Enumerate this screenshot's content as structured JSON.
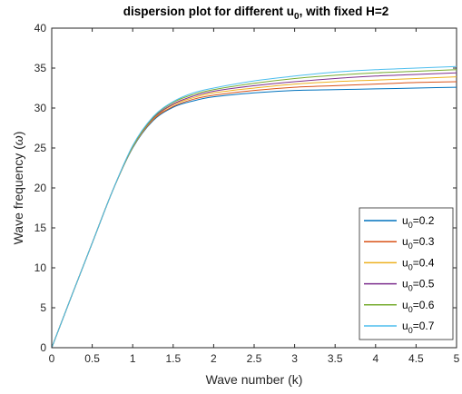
{
  "chart_data": {
    "type": "line",
    "title_main": "dispersion plot for different u",
    "title_sub": "0",
    "title_tail": ", with fixed H=2",
    "xlabel": "Wave number (k)",
    "ylabel_main": "Wave frequency (",
    "ylabel_symbol": "ω",
    "ylabel_tail": ")",
    "xlim": [
      0,
      5
    ],
    "ylim": [
      0,
      40
    ],
    "x_ticks": [
      "0",
      "0.5",
      "1",
      "1.5",
      "2",
      "2.5",
      "3",
      "3.5",
      "4",
      "4.5",
      "5"
    ],
    "y_ticks": [
      "0",
      "5",
      "10",
      "15",
      "20",
      "25",
      "30",
      "35",
      "40"
    ],
    "grid": false,
    "legend_position": "bottom-right",
    "x": [
      0,
      0.25,
      0.5,
      0.75,
      1,
      1.25,
      1.5,
      1.75,
      2,
      2.5,
      3,
      3.5,
      4,
      4.5,
      5
    ],
    "series": [
      {
        "legend_main": "u",
        "legend_sub": "0",
        "legend_value": "=0.2",
        "color": "#0072BD",
        "values": [
          0,
          6.6,
          13.1,
          19.6,
          25.0,
          28.4,
          30.1,
          30.9,
          31.4,
          31.9,
          32.2,
          32.3,
          32.4,
          32.5,
          32.6
        ]
      },
      {
        "legend_main": "u",
        "legend_sub": "0",
        "legend_value": "=0.3",
        "color": "#D95319",
        "values": [
          0,
          6.6,
          13.1,
          19.6,
          25.1,
          28.5,
          30.2,
          31.1,
          31.6,
          32.2,
          32.6,
          32.8,
          33.0,
          33.2,
          33.3
        ]
      },
      {
        "legend_main": "u",
        "legend_sub": "0",
        "legend_value": "=0.4",
        "color": "#EDB120",
        "values": [
          0,
          6.6,
          13.1,
          19.6,
          25.1,
          28.6,
          30.4,
          31.3,
          31.9,
          32.5,
          33.0,
          33.3,
          33.5,
          33.7,
          33.9
        ]
      },
      {
        "legend_main": "u",
        "legend_sub": "0",
        "legend_value": "=0.5",
        "color": "#7E2F8E",
        "values": [
          0,
          6.6,
          13.1,
          19.6,
          25.2,
          28.7,
          30.5,
          31.5,
          32.1,
          32.8,
          33.3,
          33.7,
          34.0,
          34.2,
          34.4
        ]
      },
      {
        "legend_main": "u",
        "legend_sub": "0",
        "legend_value": "=0.6",
        "color": "#77AC30",
        "values": [
          0,
          6.6,
          13.1,
          19.6,
          25.2,
          28.8,
          30.7,
          31.7,
          32.3,
          33.1,
          33.7,
          34.1,
          34.4,
          34.6,
          34.8
        ]
      },
      {
        "legend_main": "u",
        "legend_sub": "0",
        "legend_value": "=0.7",
        "color": "#4DBEEE",
        "values": [
          0,
          6.6,
          13.1,
          19.6,
          25.3,
          28.9,
          30.8,
          31.9,
          32.5,
          33.4,
          34.0,
          34.5,
          34.8,
          35.0,
          35.2
        ]
      }
    ]
  }
}
